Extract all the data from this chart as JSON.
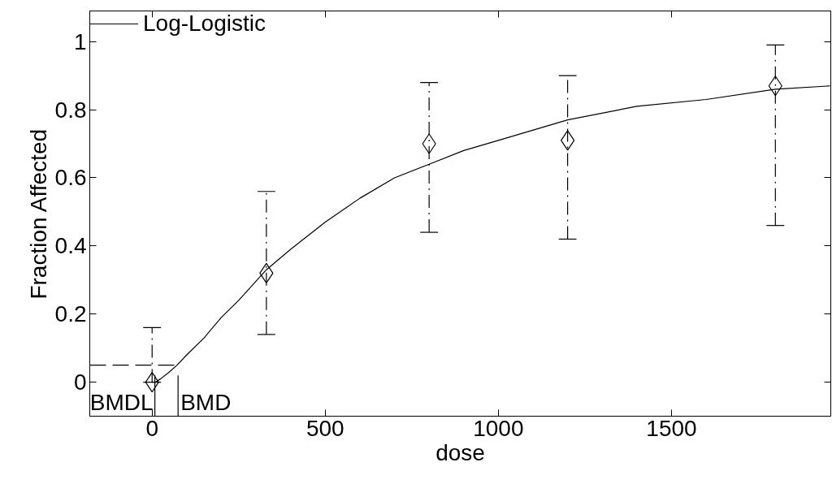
{
  "chart_data": {
    "type": "scatter",
    "xlabel": "dose",
    "ylabel": "Fraction Affected",
    "xlim": [
      -180,
      1960
    ],
    "ylim": [
      -0.1,
      1.09
    ],
    "xticks": [
      0,
      500,
      1000,
      1500
    ],
    "yticks": [
      0,
      0.2,
      0.4,
      0.6,
      0.8,
      1
    ],
    "grid": false,
    "legend": "top left",
    "marker": "diamond",
    "series": [
      {
        "name": "Log-Logistic",
        "type": "line",
        "color": "#000000",
        "line_style": "solid",
        "marker": "none",
        "x": [
          0,
          10,
          25,
          50,
          72,
          100,
          150,
          200,
          250,
          330,
          400,
          500,
          600,
          700,
          800,
          900,
          1000,
          1200,
          1400,
          1600,
          1800,
          1958
        ],
        "values": [
          0.0,
          0.0,
          0.01,
          0.03,
          0.05,
          0.08,
          0.13,
          0.19,
          0.24,
          0.33,
          0.39,
          0.47,
          0.54,
          0.6,
          0.64,
          0.68,
          0.71,
          0.77,
          0.81,
          0.83,
          0.86,
          0.87
        ]
      },
      {
        "color": "#000000",
        "x": [
          0,
          330,
          800,
          1200,
          1800
        ],
        "values": [
          0.0,
          0.32,
          0.7,
          0.71,
          0.87
        ],
        "errors": [
          [
            0.0,
            0.16
          ],
          [
            0.14,
            0.56
          ],
          [
            0.44,
            0.88
          ],
          [
            0.42,
            0.9
          ],
          [
            0.46,
            0.99
          ]
        ]
      },
      {
        "type": "line",
        "color": "#000000",
        "line_style": "dashed",
        "marker": "none",
        "x": [
          -180,
          75
        ],
        "values": [
          0.05,
          0.05
        ]
      },
      {
        "type": "line",
        "color": "#000000",
        "line_style": "solid",
        "marker": "none",
        "x": [
          8,
          8
        ],
        "values": [
          -0.1,
          0.02
        ]
      },
      {
        "type": "line",
        "color": "#000000",
        "line_style": "solid",
        "marker": "none",
        "x": [
          75,
          75
        ],
        "values": [
          -0.1,
          0.02
        ]
      }
    ],
    "annotations": [
      {
        "text": "BMDL",
        "x": 8,
        "y": -0.1
      },
      {
        "text": "BMD",
        "x": 75,
        "y": -0.1
      }
    ]
  }
}
